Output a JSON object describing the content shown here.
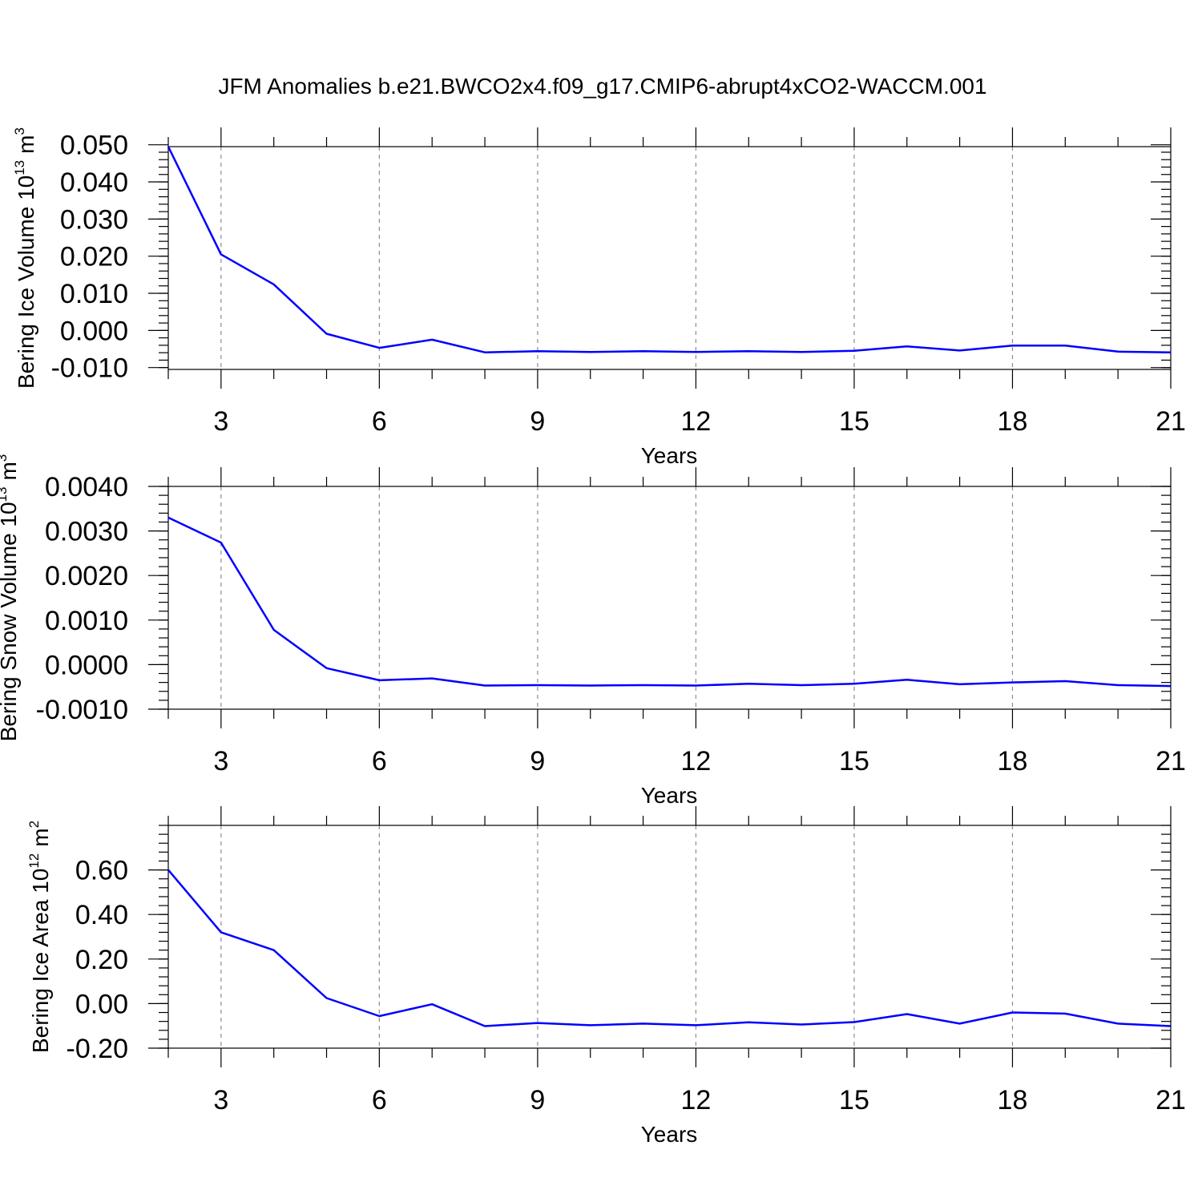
{
  "figure_title": "JFM Anomalies b.e21.BWCO2x4.f09_g17.CMIP6-abrupt4xCO2-WACCM.001",
  "line_color": "#0000ff",
  "chart_data": [
    {
      "type": "line",
      "name": "bering-ice-volume",
      "ylabel": "Bering Ice Volume 10",
      "ylabel_exponent": "13",
      "ylabel_unit": "m",
      "ylabel_unit_exponent": "3",
      "xlabel": "Years",
      "xlim": [
        2,
        21
      ],
      "ylim": [
        -0.0105,
        0.0495
      ],
      "x_ticks": [
        3,
        6,
        9,
        12,
        15,
        18,
        21
      ],
      "x_tick_labels": [
        "3",
        "6",
        "9",
        "12",
        "15",
        "18",
        "21"
      ],
      "x_minor_step": 1,
      "y_ticks": [
        -0.01,
        0.0,
        0.01,
        0.02,
        0.03,
        0.04,
        0.05
      ],
      "y_tick_labels": [
        "-0.010",
        "0.000",
        "0.010",
        "0.020",
        "0.030",
        "0.040",
        "0.050"
      ],
      "y_minor_step": 0.002,
      "grid": "vertical dashed at major x ticks",
      "series": [
        {
          "name": "Bering Ice Volume",
          "x": [
            2,
            3,
            4,
            5,
            6,
            7,
            8,
            9,
            10,
            11,
            12,
            13,
            14,
            15,
            16,
            17,
            18,
            19,
            20,
            21
          ],
          "values": [
            0.0495,
            0.0205,
            0.0124,
            -0.0009,
            -0.0047,
            -0.0025,
            -0.0059,
            -0.0056,
            -0.0058,
            -0.0056,
            -0.0058,
            -0.0056,
            -0.0058,
            -0.0055,
            -0.0043,
            -0.0054,
            -0.0041,
            -0.0041,
            -0.0057,
            -0.0059
          ]
        }
      ]
    },
    {
      "type": "line",
      "name": "bering-snow-volume",
      "ylabel": "Bering Snow Volume 10",
      "ylabel_exponent": "13",
      "ylabel_unit": "m",
      "ylabel_unit_exponent": "3",
      "xlabel": "Years",
      "xlim": [
        2,
        21
      ],
      "ylim": [
        -0.001,
        0.004
      ],
      "x_ticks": [
        3,
        6,
        9,
        12,
        15,
        18,
        21
      ],
      "x_tick_labels": [
        "3",
        "6",
        "9",
        "12",
        "15",
        "18",
        "21"
      ],
      "x_minor_step": 1,
      "y_ticks": [
        -0.001,
        0.0,
        0.001,
        0.002,
        0.003,
        0.004
      ],
      "y_tick_labels": [
        "-0.0010",
        "0.0000",
        "0.0010",
        "0.0020",
        "0.0030",
        "0.0040"
      ],
      "y_minor_step": 0.0002,
      "grid": "vertical dashed at major x ticks",
      "series": [
        {
          "name": "Bering Snow Volume",
          "x": [
            2,
            3,
            4,
            5,
            6,
            7,
            8,
            9,
            10,
            11,
            12,
            13,
            14,
            15,
            16,
            17,
            18,
            19,
            20,
            21
          ],
          "values": [
            0.0033,
            0.00274,
            0.00078,
            -8e-05,
            -0.00035,
            -0.00031,
            -0.00047,
            -0.00046,
            -0.00047,
            -0.00046,
            -0.00047,
            -0.00043,
            -0.00046,
            -0.00043,
            -0.00034,
            -0.00044,
            -0.0004,
            -0.00037,
            -0.00046,
            -0.00048
          ]
        }
      ]
    },
    {
      "type": "line",
      "name": "bering-ice-area",
      "ylabel": "Bering Ice Area 10",
      "ylabel_exponent": "12",
      "ylabel_unit": "m",
      "ylabel_unit_exponent": "2",
      "xlabel": "Years",
      "xlim": [
        2,
        21
      ],
      "ylim": [
        -0.2,
        0.8
      ],
      "x_ticks": [
        3,
        6,
        9,
        12,
        15,
        18,
        21
      ],
      "x_tick_labels": [
        "3",
        "6",
        "9",
        "12",
        "15",
        "18",
        "21"
      ],
      "x_minor_step": 1,
      "y_ticks": [
        -0.2,
        0.0,
        0.2,
        0.4,
        0.6
      ],
      "y_tick_labels": [
        "-0.20",
        "0.00",
        "0.20",
        "0.40",
        "0.60"
      ],
      "y_minor_step": 0.04,
      "grid": "vertical dashed at major x ticks",
      "series": [
        {
          "name": "Bering Ice Area",
          "x": [
            2,
            3,
            4,
            5,
            6,
            7,
            8,
            9,
            10,
            11,
            12,
            13,
            14,
            15,
            16,
            17,
            18,
            19,
            20,
            21
          ],
          "values": [
            0.6,
            0.32,
            0.24,
            0.025,
            -0.056,
            -0.003,
            -0.101,
            -0.087,
            -0.097,
            -0.09,
            -0.097,
            -0.084,
            -0.094,
            -0.083,
            -0.047,
            -0.09,
            -0.04,
            -0.045,
            -0.09,
            -0.101
          ]
        }
      ]
    }
  ]
}
